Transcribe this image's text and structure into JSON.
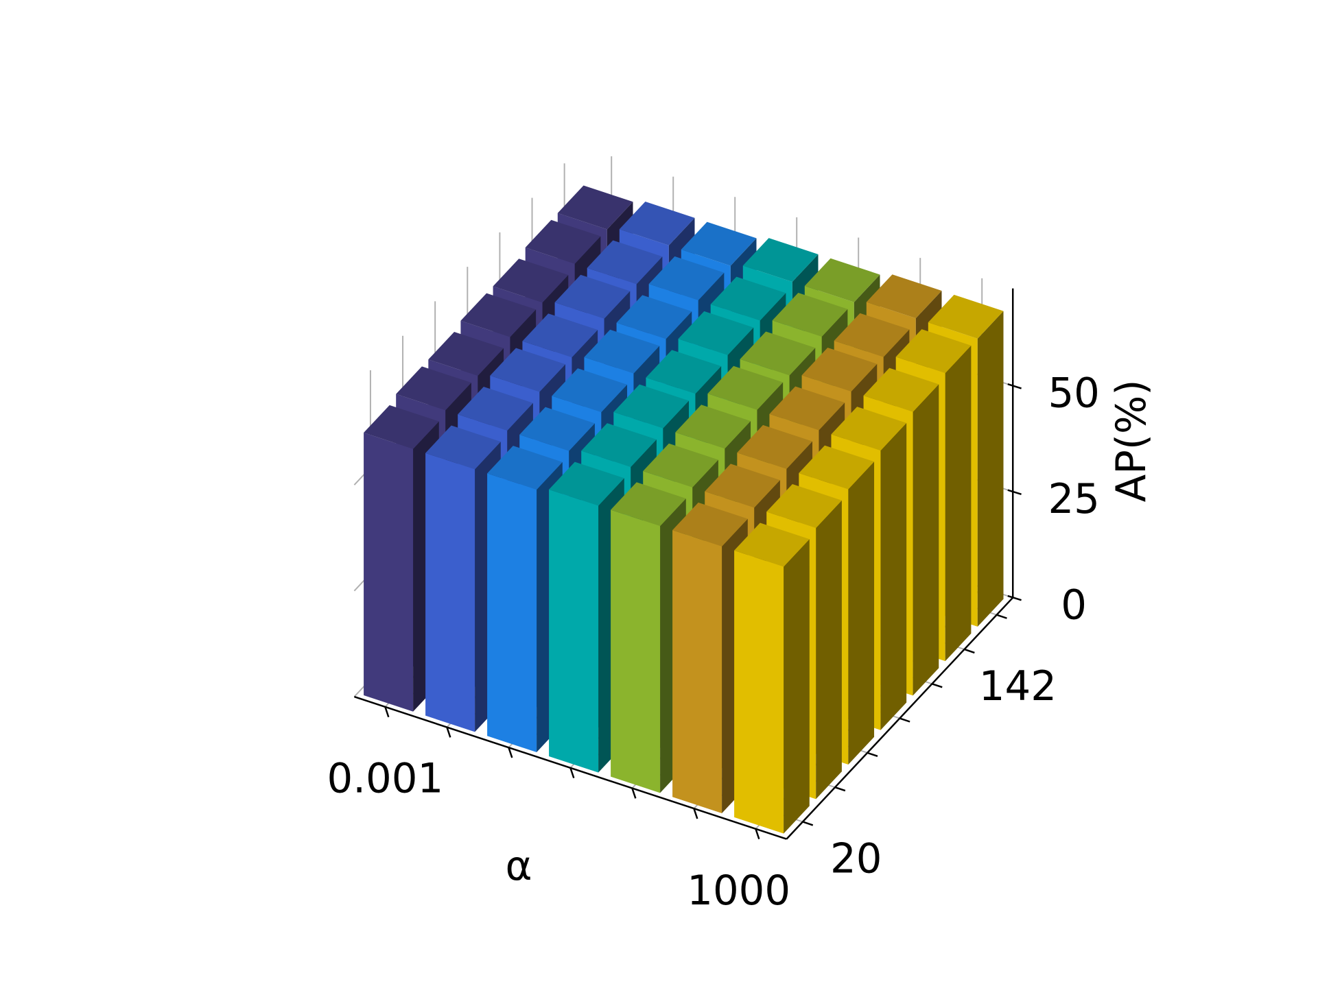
{
  "chart_data": {
    "type": "bar3d",
    "x_label": "α",
    "z_label": "AP(%)",
    "categories": [
      "0.001",
      null,
      null,
      null,
      null,
      null,
      "1000"
    ],
    "depth_categories": [
      "20",
      null,
      null,
      null,
      null,
      "142",
      null
    ],
    "colors": [
      "#413a7c",
      "#3b5fcd",
      "#1d80e3",
      "#00a9aa",
      "#8bb42d",
      "#c3921e",
      "#e1be00"
    ],
    "values": [
      [
        62,
        62,
        62,
        63,
        63,
        63,
        63
      ],
      [
        63,
        63,
        63,
        64,
        64,
        64,
        64
      ],
      [
        63,
        64,
        64,
        65,
        65,
        65,
        65
      ],
      [
        64,
        64,
        65,
        65,
        66,
        66,
        66
      ],
      [
        64,
        65,
        65,
        66,
        66,
        67,
        67
      ],
      [
        65,
        65,
        66,
        66,
        67,
        67,
        68
      ],
      [
        65,
        66,
        66,
        67,
        67,
        68,
        68
      ]
    ],
    "zlim": [
      0,
      73
    ],
    "zticks": [
      0,
      25,
      50
    ],
    "grid": true
  }
}
